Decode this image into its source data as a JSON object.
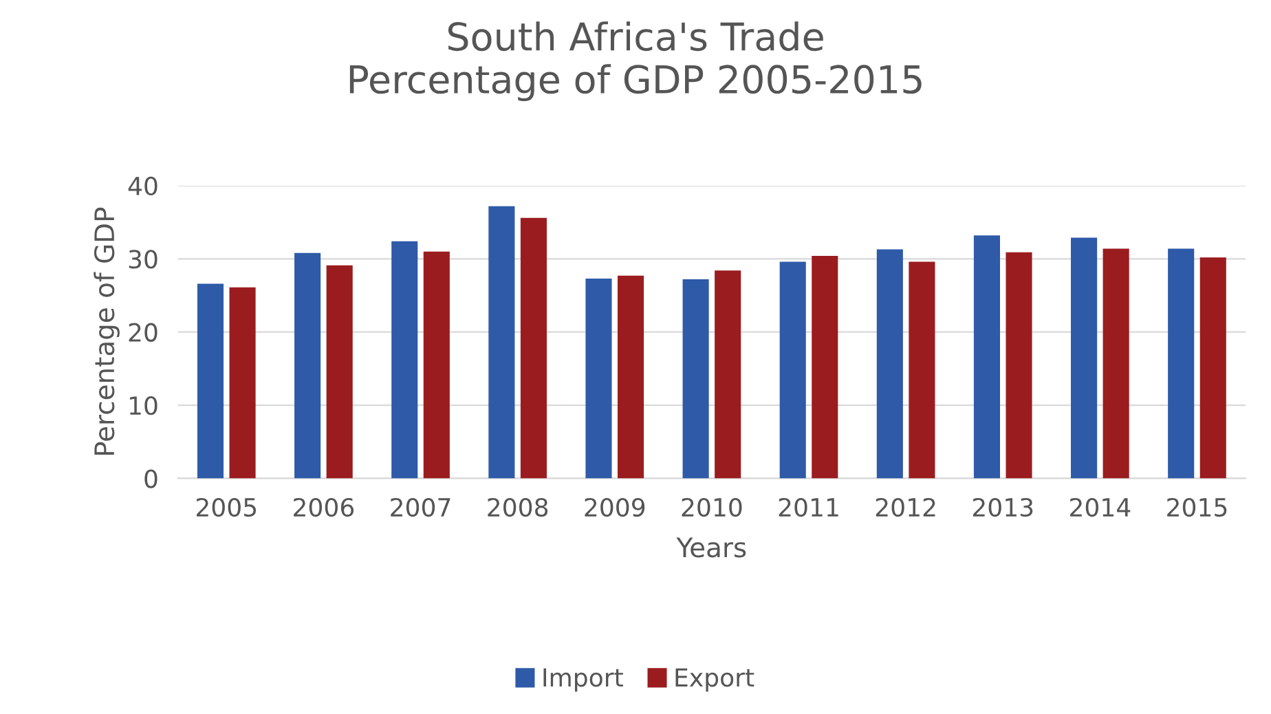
{
  "chart_data": {
    "type": "bar",
    "title": "South Africa's Trade\nPercentage of GDP 2005-2015",
    "xlabel": "Years",
    "ylabel": "Percentage of GDP",
    "categories": [
      "2005",
      "2006",
      "2007",
      "2008",
      "2009",
      "2010",
      "2011",
      "2012",
      "2013",
      "2014",
      "2015"
    ],
    "series": [
      {
        "name": "Import",
        "color": "#2e5aa8",
        "values": [
          26.6,
          30.8,
          32.4,
          37.2,
          27.3,
          27.2,
          29.6,
          31.3,
          33.2,
          32.9,
          31.4
        ]
      },
      {
        "name": "Export",
        "color": "#9b1c1f",
        "values": [
          26.1,
          29.1,
          31.0,
          35.6,
          27.7,
          28.4,
          30.4,
          29.6,
          30.9,
          31.4,
          30.2
        ]
      }
    ],
    "ylim": [
      0,
      40
    ],
    "yticks": [
      0,
      10,
      20,
      30,
      40
    ],
    "grid": "y",
    "legend": "bottom"
  }
}
